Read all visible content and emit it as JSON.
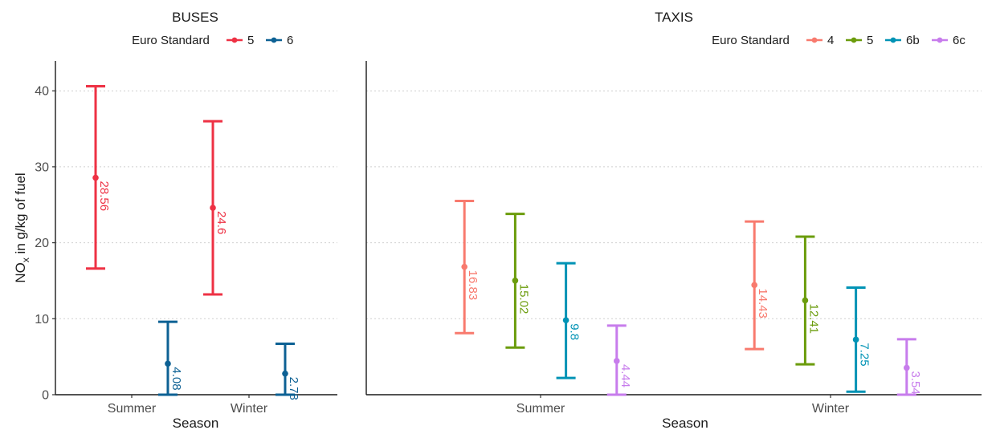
{
  "chart_data": [
    {
      "type": "errorbar",
      "title": "BUSES",
      "xlabel": "Season",
      "ylabel": "NOx in g/kg of fuel",
      "ylabel_main": "NO",
      "ylabel_sub": "x",
      "ylabel_rest": " in g/kg of fuel",
      "legend_title": "Euro Standard",
      "legend_position": "top",
      "ylim": [
        0,
        44
      ],
      "yticks": [
        0,
        10,
        20,
        30,
        40
      ],
      "grid": "horizontal dotted",
      "categories": [
        "Summer",
        "Winter"
      ],
      "series": [
        {
          "name": "5",
          "color": "#ee3144",
          "values": [
            28.56,
            24.6
          ],
          "lower": [
            16.6,
            13.2
          ],
          "upper": [
            40.6,
            36.0
          ],
          "labels": [
            "28.56",
            "24.6"
          ]
        },
        {
          "name": "6",
          "color": "#0d6194",
          "values": [
            4.08,
            2.78
          ],
          "lower": [
            0,
            0
          ],
          "upper": [
            9.6,
            6.7
          ],
          "labels": [
            "4.08",
            "2.78"
          ]
        }
      ]
    },
    {
      "type": "errorbar",
      "title": "TAXIS",
      "xlabel": "Season",
      "legend_title": "Euro Standard",
      "legend_position": "top-right",
      "ylim": [
        0,
        44
      ],
      "yticks": [
        0,
        10,
        20,
        30,
        40
      ],
      "grid": "horizontal dotted",
      "categories": [
        "Summer",
        "Winter"
      ],
      "series": [
        {
          "name": "4",
          "color": "#f87a6e",
          "values": [
            16.83,
            14.43
          ],
          "lower": [
            8.1,
            6.0
          ],
          "upper": [
            25.5,
            22.8
          ],
          "labels": [
            "16.83",
            "14.43"
          ]
        },
        {
          "name": "5",
          "color": "#6b9c0c",
          "values": [
            15.02,
            12.41
          ],
          "lower": [
            6.2,
            4.0
          ],
          "upper": [
            23.8,
            20.8
          ],
          "labels": [
            "15.02",
            "12.41"
          ]
        },
        {
          "name": "6b",
          "color": "#0093b5",
          "values": [
            9.8,
            7.25
          ],
          "lower": [
            2.2,
            0.4
          ],
          "upper": [
            17.3,
            14.1
          ],
          "labels": [
            "9.8",
            "7.25"
          ]
        },
        {
          "name": "6c",
          "color": "#c77cec",
          "values": [
            4.44,
            3.54
          ],
          "lower": [
            0,
            0
          ],
          "upper": [
            9.1,
            7.3
          ],
          "labels": [
            "4.44",
            "3.54"
          ]
        }
      ]
    }
  ]
}
